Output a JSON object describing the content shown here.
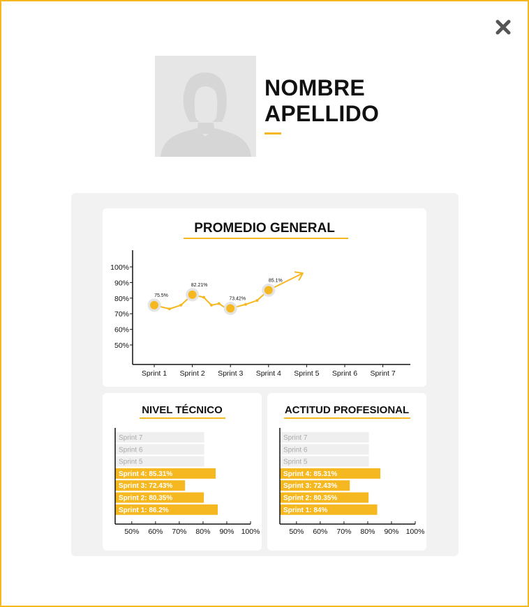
{
  "profile": {
    "first_name": "NOMBRE",
    "last_name": "APELLIDO"
  },
  "colors": {
    "accent": "#f5b820",
    "panel_bg": "#f2f2f2",
    "empty_bar": "#efefef"
  },
  "promedio": {
    "title": "PROMEDIO GENERAL",
    "chart_data": {
      "type": "line",
      "title": "PROMEDIO GENERAL",
      "categories": [
        "Sprint 1",
        "Sprint 2",
        "Sprint 3",
        "Sprint 4",
        "Sprint 5",
        "Sprint 6",
        "Sprint 7"
      ],
      "y_ticks": [
        "100%",
        "90%",
        "80%",
        "70%",
        "60%",
        "50%"
      ],
      "ylim": [
        50,
        100
      ],
      "x": [
        1,
        1.4,
        1.7,
        2,
        2.3,
        2.5,
        2.7,
        2.9,
        3,
        3.4,
        3.7,
        4,
        4.9
      ],
      "values": [
        75.5,
        73.1,
        75.5,
        82.21,
        80.5,
        75.5,
        76.5,
        73.2,
        73.42,
        76.0,
        78.5,
        85.1,
        96.0
      ],
      "highlights": [
        {
          "label": "75.5%",
          "x": 1,
          "value": 75.5
        },
        {
          "label": "82.21%",
          "x": 2,
          "value": 82.21
        },
        {
          "label": "73.42%",
          "x": 3,
          "value": 73.42
        },
        {
          "label": "85.1%",
          "x": 4,
          "value": 85.1
        }
      ],
      "trend": "arrow-up"
    }
  },
  "tecnico": {
    "title": "NIVEL TÉCNICO",
    "chart_data": {
      "type": "bar",
      "orientation": "horizontal",
      "title": "NIVEL TÉCNICO",
      "categories": [
        "Sprint 7",
        "Sprint 6",
        "Sprint 5",
        "Sprint 4",
        "Sprint 3",
        "Sprint 2",
        "Sprint 1"
      ],
      "labels": [
        "Sprint 7",
        "Sprint 6",
        "Sprint 5",
        "Sprint 4: 85.31%",
        "Sprint 3: 72.43%",
        "Sprint 2: 80.35%",
        "Sprint 1: 86.2%"
      ],
      "values": [
        null,
        null,
        null,
        85.31,
        72.43,
        80.35,
        86.2
      ],
      "x_ticks": [
        "50%",
        "60%",
        "70%",
        "80%",
        "90%",
        "100%"
      ],
      "xlim": [
        43,
        100
      ]
    }
  },
  "actitud": {
    "title": "ACTITUD PROFESIONAL",
    "chart_data": {
      "type": "bar",
      "orientation": "horizontal",
      "title": "ACTITUD PROFESIONAL",
      "categories": [
        "Sprint 7",
        "Sprint 6",
        "Sprint 5",
        "Sprint 4",
        "Sprint 3",
        "Sprint 2",
        "Sprint 1"
      ],
      "labels": [
        "Sprint 7",
        "Sprint 6",
        "Sprint 5",
        "Sprint 4: 85.31%",
        "Sprint 3: 72.43%",
        "Sprint 2: 80.35%",
        "Sprint 1: 84%"
      ],
      "values": [
        null,
        null,
        null,
        85.31,
        72.43,
        80.35,
        84
      ],
      "x_ticks": [
        "50%",
        "60%",
        "70%",
        "80%",
        "90%",
        "100%"
      ],
      "xlim": [
        43,
        100
      ]
    }
  }
}
